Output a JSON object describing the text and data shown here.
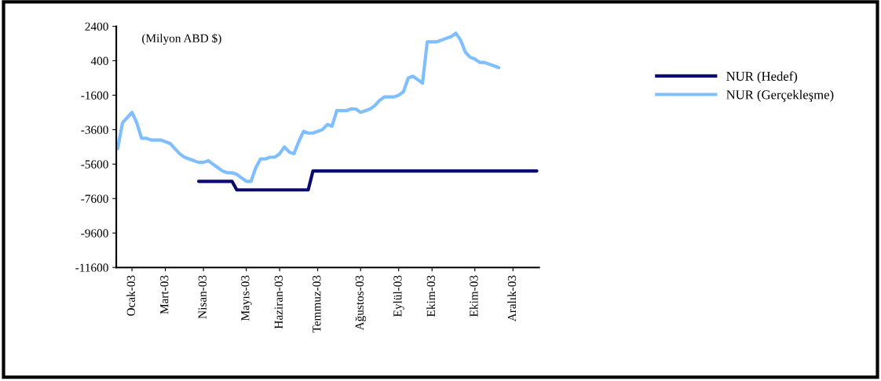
{
  "chart_data": {
    "type": "line",
    "annotations": [
      "(Milyon ABD $)"
    ],
    "categories": [
      null,
      null,
      null,
      "Ocak-03",
      null,
      null,
      null,
      null,
      null,
      null,
      "Mart-03",
      null,
      null,
      null,
      null,
      null,
      null,
      null,
      "Nisan-03",
      null,
      null,
      null,
      null,
      null,
      null,
      null,
      null,
      "Mayıs-03",
      null,
      null,
      null,
      null,
      null,
      null,
      "Haziran-03",
      null,
      null,
      null,
      null,
      null,
      null,
      null,
      "Temmuz-03",
      null,
      null,
      null,
      null,
      null,
      null,
      null,
      null,
      "Ağustos-03",
      null,
      null,
      null,
      null,
      null,
      null,
      null,
      "Eylül-03",
      null,
      null,
      null,
      null,
      null,
      null,
      "Ekim-03",
      null,
      null,
      null,
      null,
      null,
      null,
      null,
      null,
      "Ekim-03",
      null,
      null,
      null,
      null,
      null,
      null,
      null,
      "Aralık-03",
      null,
      null,
      null,
      null,
      null
    ],
    "series": [
      {
        "name": "NUR (Hedef)",
        "color": "#0b0b6e",
        "values": [
          null,
          null,
          null,
          null,
          null,
          null,
          null,
          null,
          null,
          null,
          null,
          null,
          null,
          null,
          null,
          null,
          null,
          -6600,
          -6600,
          -6600,
          -6600,
          -6600,
          -6600,
          -6600,
          -6600,
          -7100,
          -7100,
          -7100,
          -7100,
          -7100,
          -7100,
          -7100,
          -7100,
          -7100,
          -7100,
          -7100,
          -7100,
          -7100,
          -7100,
          -7100,
          -7100,
          -6000,
          -6000,
          -6000,
          -6000,
          -6000,
          -6000,
          -6000,
          -6000,
          -6000,
          -6000,
          -6000,
          -6000,
          -6000,
          -6000,
          -6000,
          -6000,
          -6000,
          -6000,
          -6000,
          -6000,
          -6000,
          -6000,
          -6000,
          -6000,
          -6000,
          -6000,
          -6000,
          -6000,
          -6000,
          -6000,
          -6000,
          -6000,
          -6000,
          -6000,
          -6000,
          -6000,
          -6000,
          -6000,
          -6000,
          -6000,
          -6000,
          -6000,
          -6000,
          -6000,
          -6000,
          -6000,
          -6000,
          -6000
        ]
      },
      {
        "name": "NUR (Gerçekleşme)",
        "color": "#7fbfff",
        "values": [
          -4700,
          -3200,
          -2900,
          -2600,
          -3200,
          -4100,
          -4100,
          -4200,
          -4200,
          -4200,
          -4300,
          -4400,
          -4700,
          -5000,
          -5200,
          -5300,
          -5400,
          -5500,
          -5500,
          -5400,
          -5600,
          -5800,
          -6000,
          -6100,
          -6100,
          -6200,
          -6400,
          -6600,
          -6600,
          -5800,
          -5300,
          -5300,
          -5200,
          -5200,
          -5000,
          -4600,
          -4900,
          -5000,
          -4300,
          -3700,
          -3800,
          -3800,
          -3700,
          -3600,
          -3300,
          -3400,
          -2500,
          -2500,
          -2500,
          -2400,
          -2400,
          -2600,
          -2500,
          -2400,
          -2200,
          -1900,
          -1700,
          -1700,
          -1700,
          -1600,
          -1400,
          -600,
          -500,
          -700,
          -900,
          1500,
          1500,
          1500,
          1600,
          1700,
          1800,
          2000,
          1600,
          900,
          600,
          500,
          300,
          300,
          200,
          100,
          0,
          null,
          null,
          null,
          null,
          null,
          null,
          null,
          null
        ]
      }
    ],
    "ylim": [
      -11600,
      2400
    ],
    "yticks": [
      2400,
      400,
      -1600,
      -3600,
      -5600,
      -7600,
      -9600,
      -11600
    ],
    "grid": false,
    "legend": "right",
    "marker": "none",
    "line_style": "solid"
  }
}
